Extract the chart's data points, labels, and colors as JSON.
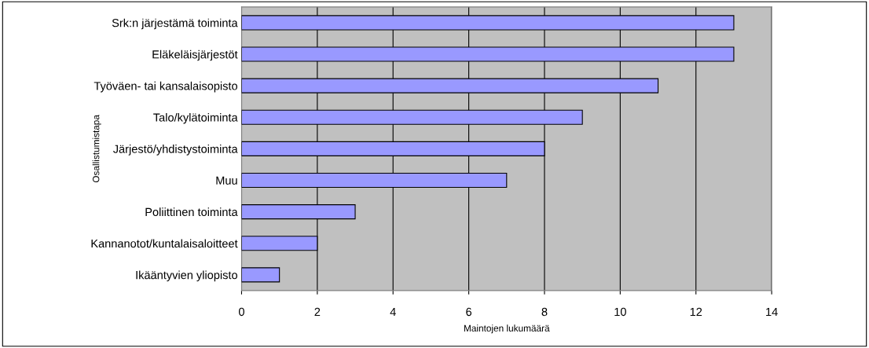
{
  "chart_data": {
    "type": "bar",
    "orientation": "horizontal",
    "xlabel": "Maintojen lukumäärä",
    "ylabel": "Osallistumistapa",
    "categories": [
      "Srk:n järjestämä toiminta",
      "Eläkeläisjärjestöt",
      "Työväen- tai kansalaisopisto",
      "Talo/kylätoiminta",
      "Järjestö/yhdistystoiminta",
      "Muu",
      "Poliittinen toiminta",
      "Kannanotot/kuntalaisaloitteet",
      "Ikääntyvien yliopisto"
    ],
    "values": [
      13,
      13,
      11,
      9,
      8,
      7,
      3,
      2,
      1
    ],
    "color": "#9999ff",
    "xlim": [
      0,
      14
    ],
    "xticks": [
      0,
      2,
      4,
      6,
      8,
      10,
      12,
      14
    ],
    "grid": "x",
    "legend": false
  }
}
